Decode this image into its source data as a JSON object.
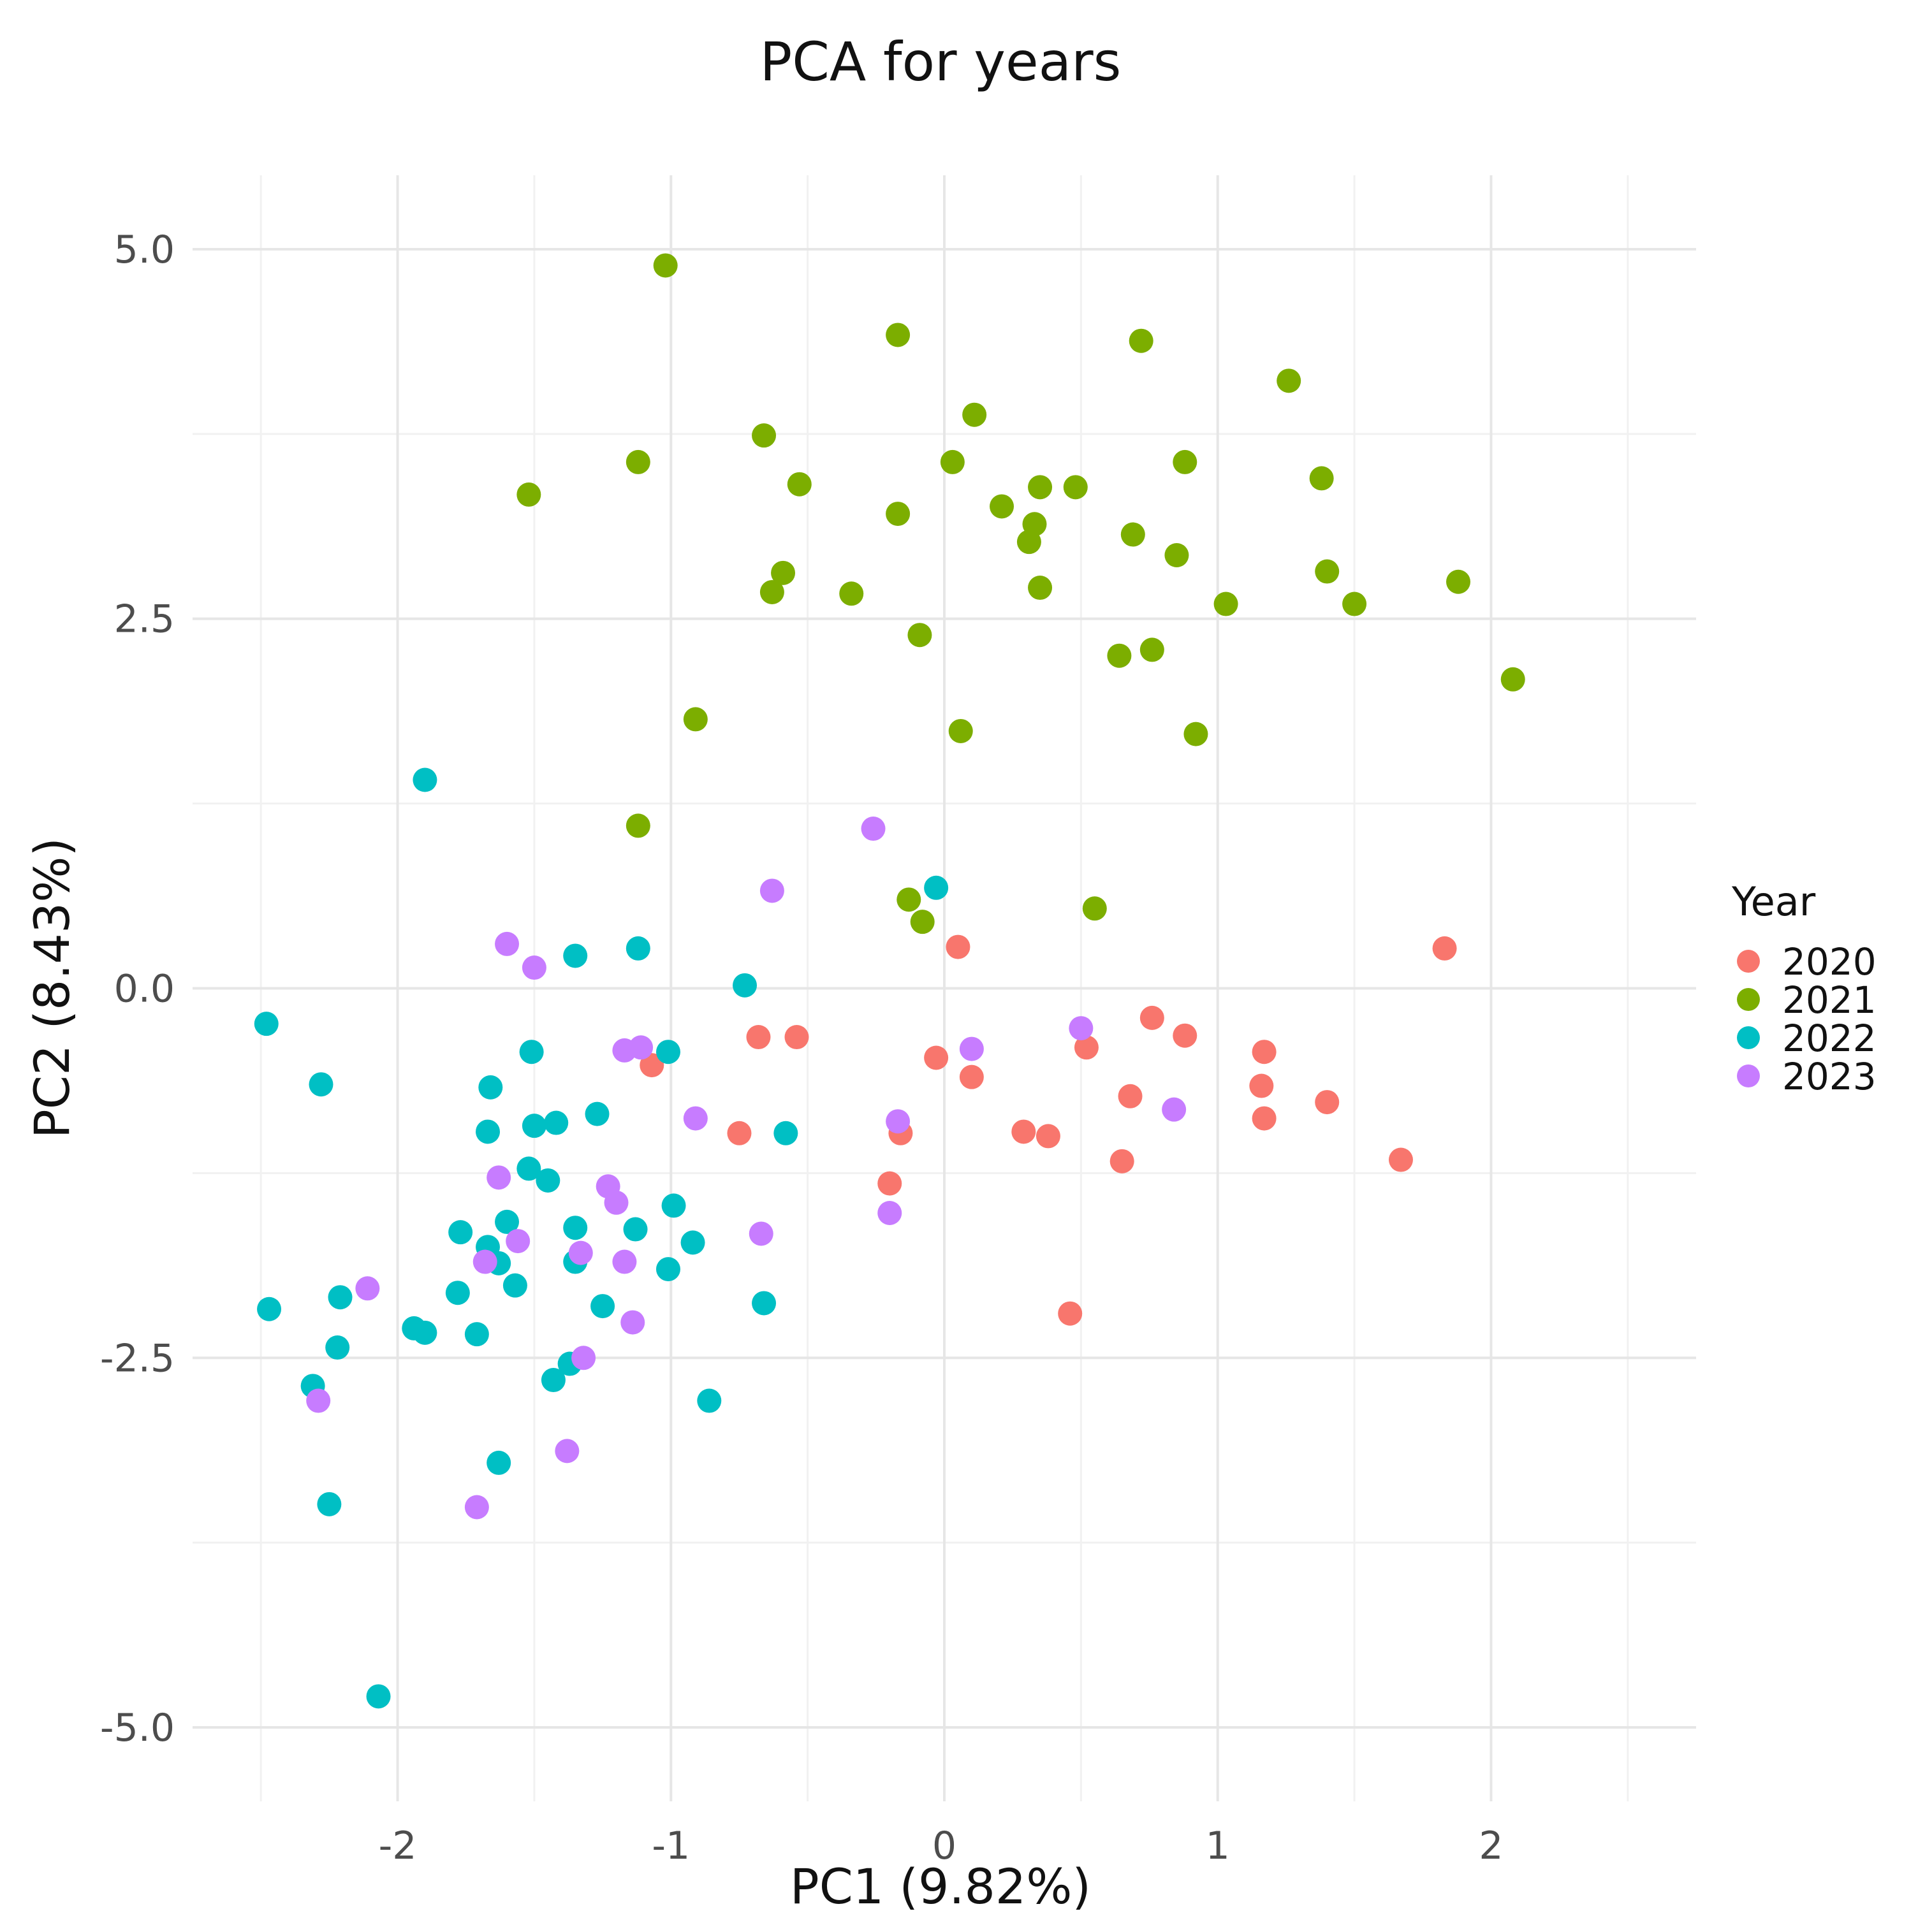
{
  "chart_data": {
    "type": "scatter",
    "title": "PCA for years",
    "xlabel": "PC1 (9.82%)",
    "ylabel": "PC2 (8.43%)",
    "xlim": [
      -2.75,
      2.75
    ],
    "ylim": [
      -5.5,
      5.5
    ],
    "xticks": [
      -2,
      -1,
      0,
      1,
      2
    ],
    "xtick_labels": [
      "-2",
      "-1",
      "0",
      "1",
      "2"
    ],
    "yticks": [
      -5.0,
      -2.5,
      0.0,
      2.5,
      5.0
    ],
    "ytick_labels": [
      "-5.0",
      "-2.5",
      "0.0",
      "2.5",
      "5.0"
    ],
    "grid": true,
    "legend": {
      "title": "Year",
      "position": "right"
    },
    "series": [
      {
        "name": "2020",
        "color": "#F8766D",
        "points": [
          [
            0.05,
            0.28
          ],
          [
            1.83,
            0.27
          ],
          [
            -0.68,
            -0.33
          ],
          [
            -0.54,
            -0.33
          ],
          [
            -1.07,
            -0.52
          ],
          [
            -0.03,
            -0.47
          ],
          [
            0.1,
            -0.6
          ],
          [
            0.52,
            -0.4
          ],
          [
            0.76,
            -0.2
          ],
          [
            0.88,
            -0.32
          ],
          [
            1.17,
            -0.43
          ],
          [
            1.16,
            -0.66
          ],
          [
            1.17,
            -0.88
          ],
          [
            1.4,
            -0.77
          ],
          [
            0.68,
            -0.73
          ],
          [
            -0.75,
            -0.98
          ],
          [
            -0.16,
            -0.98
          ],
          [
            0.29,
            -0.97
          ],
          [
            0.38,
            -1.0
          ],
          [
            0.65,
            -1.17
          ],
          [
            1.67,
            -1.16
          ],
          [
            -0.2,
            -1.32
          ],
          [
            0.46,
            -2.2
          ]
        ]
      },
      {
        "name": "2021",
        "color": "#7CAE00",
        "points": [
          [
            -1.02,
            4.89
          ],
          [
            -0.17,
            4.42
          ],
          [
            0.72,
            4.38
          ],
          [
            1.26,
            4.11
          ],
          [
            0.11,
            3.88
          ],
          [
            -0.66,
            3.74
          ],
          [
            -1.12,
            3.56
          ],
          [
            0.03,
            3.56
          ],
          [
            0.88,
            3.56
          ],
          [
            1.38,
            3.45
          ],
          [
            -1.52,
            3.34
          ],
          [
            -0.53,
            3.41
          ],
          [
            0.35,
            3.39
          ],
          [
            0.48,
            3.39
          ],
          [
            0.21,
            3.26
          ],
          [
            -0.17,
            3.21
          ],
          [
            0.33,
            3.14
          ],
          [
            0.31,
            3.02
          ],
          [
            0.69,
            3.07
          ],
          [
            0.85,
            2.93
          ],
          [
            -0.59,
            2.81
          ],
          [
            -0.63,
            2.68
          ],
          [
            -0.34,
            2.67
          ],
          [
            0.35,
            2.71
          ],
          [
            1.4,
            2.82
          ],
          [
            1.88,
            2.75
          ],
          [
            1.03,
            2.6
          ],
          [
            1.5,
            2.6
          ],
          [
            -0.09,
            2.39
          ],
          [
            0.64,
            2.25
          ],
          [
            0.76,
            2.29
          ],
          [
            2.08,
            2.09
          ],
          [
            -0.91,
            1.82
          ],
          [
            0.06,
            1.74
          ],
          [
            0.92,
            1.72
          ],
          [
            -1.12,
            1.1
          ],
          [
            -0.13,
            0.6
          ],
          [
            -0.08,
            0.45
          ],
          [
            0.55,
            0.54
          ]
        ]
      },
      {
        "name": "2022",
        "color": "#00BFC4",
        "points": [
          [
            -1.9,
            1.41
          ],
          [
            -0.03,
            0.68
          ],
          [
            -1.35,
            0.22
          ],
          [
            -1.12,
            0.27
          ],
          [
            -0.73,
            0.02
          ],
          [
            -2.48,
            -0.24
          ],
          [
            -2.28,
            -0.65
          ],
          [
            -1.66,
            -0.67
          ],
          [
            -1.51,
            -0.43
          ],
          [
            -1.01,
            -0.43
          ],
          [
            -1.67,
            -0.97
          ],
          [
            -1.5,
            -0.93
          ],
          [
            -1.42,
            -0.91
          ],
          [
            -1.27,
            -0.85
          ],
          [
            -0.58,
            -0.98
          ],
          [
            -1.52,
            -1.22
          ],
          [
            -1.45,
            -1.3
          ],
          [
            -0.99,
            -1.47
          ],
          [
            -1.6,
            -1.58
          ],
          [
            -1.77,
            -1.65
          ],
          [
            -1.35,
            -1.62
          ],
          [
            -1.13,
            -1.63
          ],
          [
            -0.92,
            -1.72
          ],
          [
            -1.67,
            -1.75
          ],
          [
            -1.63,
            -1.86
          ],
          [
            -1.35,
            -1.85
          ],
          [
            -1.01,
            -1.9
          ],
          [
            -1.57,
            -2.01
          ],
          [
            -1.78,
            -2.06
          ],
          [
            -2.21,
            -2.09
          ],
          [
            -2.47,
            -2.17
          ],
          [
            -1.25,
            -2.15
          ],
          [
            -0.66,
            -2.13
          ],
          [
            -1.94,
            -2.3
          ],
          [
            -1.9,
            -2.33
          ],
          [
            -1.71,
            -2.34
          ],
          [
            -2.22,
            -2.43
          ],
          [
            -1.37,
            -2.54
          ],
          [
            -1.43,
            -2.65
          ],
          [
            -2.31,
            -2.69
          ],
          [
            -0.86,
            -2.79
          ],
          [
            -1.63,
            -3.21
          ],
          [
            -2.25,
            -3.49
          ],
          [
            -2.07,
            -4.79
          ]
        ]
      },
      {
        "name": "2023",
        "color": "#C77CFF",
        "points": [
          [
            -0.26,
            1.08
          ],
          [
            -0.63,
            0.66
          ],
          [
            -1.6,
            0.3
          ],
          [
            -1.5,
            0.14
          ],
          [
            0.5,
            -0.27
          ],
          [
            -1.17,
            -0.42
          ],
          [
            -1.11,
            -0.4
          ],
          [
            0.1,
            -0.41
          ],
          [
            -0.91,
            -0.88
          ],
          [
            -0.17,
            -0.9
          ],
          [
            0.84,
            -0.82
          ],
          [
            -1.63,
            -1.28
          ],
          [
            -1.23,
            -1.34
          ],
          [
            -1.2,
            -1.45
          ],
          [
            -0.67,
            -1.66
          ],
          [
            -0.2,
            -1.52
          ],
          [
            -1.56,
            -1.71
          ],
          [
            -1.33,
            -1.79
          ],
          [
            -1.17,
            -1.85
          ],
          [
            -1.68,
            -1.85
          ],
          [
            -2.11,
            -2.03
          ],
          [
            -1.14,
            -2.26
          ],
          [
            -1.32,
            -2.5
          ],
          [
            -2.29,
            -2.79
          ],
          [
            -1.38,
            -3.13
          ],
          [
            -1.71,
            -3.51
          ]
        ]
      }
    ]
  }
}
